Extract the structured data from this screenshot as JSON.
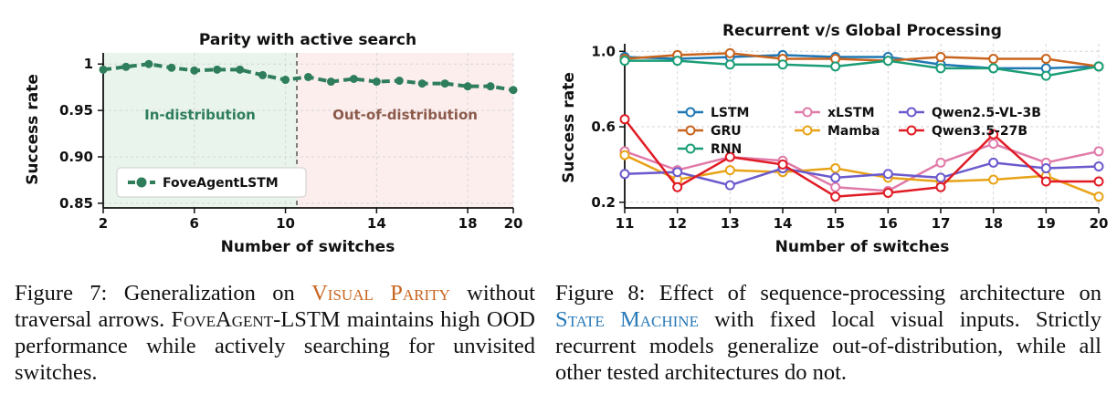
{
  "chart_data": [
    {
      "type": "line",
      "title": "Parity with active search",
      "xlabel": "Number of switches",
      "ylabel": "Success rate",
      "xlim": [
        2,
        20
      ],
      "ylim": [
        0.845,
        1.012
      ],
      "xticks": [
        "2",
        "6",
        "10",
        "14",
        "18",
        "20"
      ],
      "yticks": [
        "1",
        "0.95",
        "0.90",
        "0.85"
      ],
      "divider_x": 10.5,
      "regions": [
        {
          "label": "In-distribution",
          "color": "#2e7d5b"
        },
        {
          "label": "Out-of-distribution",
          "color": "#8b5a4a"
        }
      ],
      "legend_position": "lower-left",
      "grid": true,
      "series": [
        {
          "name": "FoveAgentLSTM",
          "color": "#2e7d5b",
          "x": [
            2,
            3,
            4,
            5,
            6,
            7,
            8,
            9,
            10,
            11,
            12,
            13,
            14,
            15,
            16,
            17,
            18,
            19,
            20
          ],
          "values": [
            0.994,
            0.997,
            1.0,
            0.996,
            0.993,
            0.994,
            0.994,
            0.988,
            0.983,
            0.986,
            0.981,
            0.984,
            0.981,
            0.982,
            0.979,
            0.979,
            0.976,
            0.976,
            0.972
          ]
        }
      ]
    },
    {
      "type": "line",
      "title": "Recurrent v/s Global Processing",
      "xlabel": "Number of switches",
      "ylabel": "Success rate",
      "xlim": [
        11,
        20
      ],
      "ylim": [
        0.17,
        1.04
      ],
      "xticks": [
        "11",
        "12",
        "13",
        "14",
        "15",
        "16",
        "17",
        "18",
        "19",
        "20"
      ],
      "yticks": [
        "1.0",
        "0.6",
        "0.2"
      ],
      "legend_position": "center",
      "grid": true,
      "series": [
        {
          "name": "LSTM",
          "color": "#1f77b4",
          "values": [
            0.97,
            0.96,
            0.97,
            0.98,
            0.97,
            0.97,
            0.93,
            0.91,
            0.91,
            0.92
          ]
        },
        {
          "name": "GRU",
          "color": "#c8641e",
          "values": [
            0.96,
            0.98,
            0.99,
            0.96,
            0.96,
            0.95,
            0.97,
            0.96,
            0.96,
            0.92
          ]
        },
        {
          "name": "RNN",
          "color": "#1b9e77",
          "values": [
            0.95,
            0.95,
            0.93,
            0.93,
            0.92,
            0.95,
            0.91,
            0.91,
            0.87,
            0.92
          ]
        },
        {
          "name": "xLSTM",
          "color": "#e07aa8",
          "values": [
            0.47,
            0.37,
            0.44,
            0.42,
            0.28,
            0.26,
            0.41,
            0.51,
            0.41,
            0.47
          ]
        },
        {
          "name": "Mamba",
          "color": "#e8a317",
          "values": [
            0.45,
            0.32,
            0.37,
            0.36,
            0.38,
            0.33,
            0.31,
            0.32,
            0.34,
            0.23
          ]
        },
        {
          "name": "Qwen2.5-VL-3B",
          "color": "#6a5acd",
          "values": [
            0.35,
            0.36,
            0.29,
            0.38,
            0.33,
            0.35,
            0.33,
            0.41,
            0.38,
            0.39
          ]
        },
        {
          "name": "Qwen3.5-27B",
          "color": "#e01b24",
          "values": [
            0.64,
            0.28,
            0.44,
            0.4,
            0.23,
            0.25,
            0.28,
            0.56,
            0.31,
            0.31
          ]
        }
      ],
      "categories": [
        11,
        12,
        13,
        14,
        15,
        16,
        17,
        18,
        19,
        20
      ]
    }
  ],
  "captions": {
    "fig7": {
      "lead": "Figure 7:  Generalization on ",
      "name": "Visual Parity",
      "name_color": "#c8641e",
      "mid": " without traversal arrows. ",
      "agent": "FoveAgent",
      "rest": "-LSTM maintains high OOD performance while actively searching for unvisited switches."
    },
    "fig8": {
      "lead": "Figure 8: Effect of sequence-processing architecture on ",
      "name": "State Machine",
      "name_color": "#2a7ab8",
      "rest": " with fixed local visual inputs.  Strictly recurrent models generalize out-of-distribution, while all other tested architectures do not."
    }
  }
}
